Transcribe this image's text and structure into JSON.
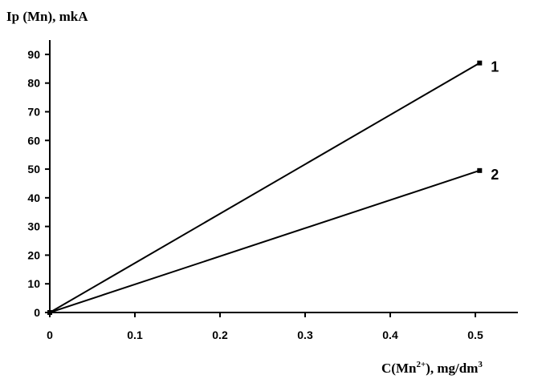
{
  "chart_data": {
    "type": "line",
    "ylabel": "Ip (Mn), mkA",
    "xlabel": {
      "base": "C(Mn",
      "sup": "2+",
      "tail": "), mg/dm",
      "sup2": "3"
    },
    "xlim": [
      0,
      0.55
    ],
    "ylim": [
      0,
      95
    ],
    "xticks": [
      "0",
      "0.1",
      "0.2",
      "0.3",
      "0.4",
      "0.5"
    ],
    "xtick_values": [
      0,
      0.1,
      0.2,
      0.3,
      0.4,
      0.5
    ],
    "yticks": [
      "0",
      "10",
      "20",
      "30",
      "40",
      "50",
      "60",
      "70",
      "80",
      "90"
    ],
    "ytick_values": [
      0,
      10,
      20,
      30,
      40,
      50,
      60,
      70,
      80,
      90
    ],
    "grid": false,
    "series": [
      {
        "label": "1",
        "x": [
          0,
          0.505
        ],
        "y": [
          0,
          87
        ],
        "color": "#000000"
      },
      {
        "label": "2",
        "x": [
          0,
          0.505
        ],
        "y": [
          0,
          49.5
        ],
        "color": "#000000"
      }
    ]
  }
}
